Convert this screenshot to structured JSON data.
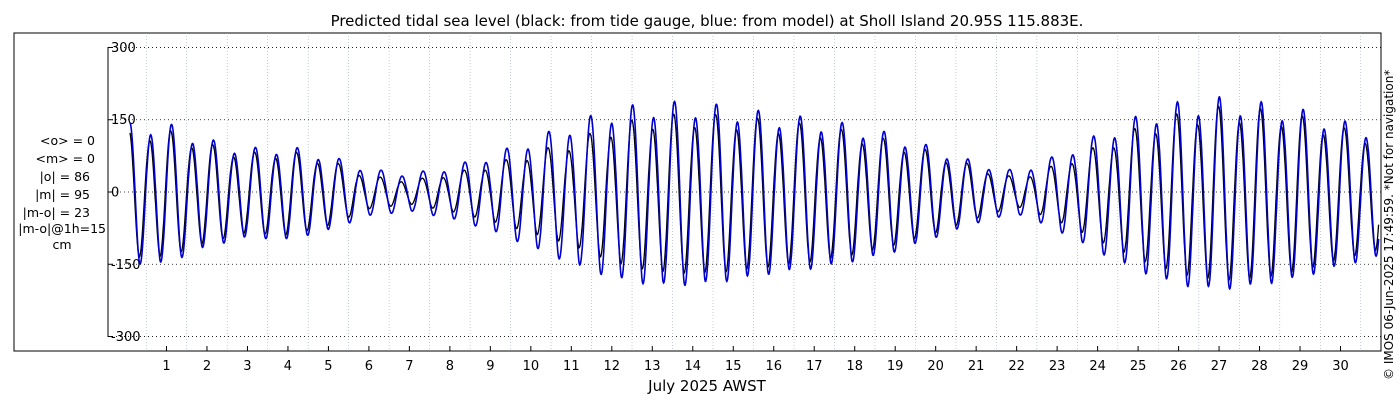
{
  "chart_data": {
    "type": "line",
    "title": "Predicted tidal sea level (black: from tide gauge, blue: from model) at Sholl Island 20.95S 115.883E.",
    "xlabel": "July 2025 AWST",
    "ylabel": "",
    "unit": "cm",
    "ylim": [
      -330,
      330
    ],
    "xlim": [
      0,
      31
    ],
    "yticks": [
      -300,
      -150,
      0,
      150,
      300
    ],
    "xticks": [
      1,
      2,
      3,
      4,
      5,
      6,
      7,
      8,
      9,
      10,
      11,
      12,
      13,
      14,
      15,
      16,
      17,
      18,
      19,
      20,
      21,
      22,
      23,
      24,
      25,
      26,
      27,
      28,
      29,
      30
    ],
    "grid": true,
    "series": [
      {
        "name": "from tide gauge",
        "color": "#000000",
        "description": "semi-diurnal tide, day-of-month x vs sea level (cm); daily-max amplitude samples",
        "x": [
          0,
          1,
          2,
          3,
          4,
          5,
          6,
          7,
          8,
          9,
          10,
          11,
          12,
          13,
          14,
          15,
          16,
          17,
          18,
          19,
          20,
          21,
          22,
          23,
          24,
          25,
          26,
          27,
          28,
          29,
          30,
          31
        ],
        "values": [
          135,
          135,
          105,
          85,
          90,
          70,
          35,
          25,
          40,
          60,
          85,
          110,
          145,
          165,
          170,
          165,
          155,
          145,
          130,
          110,
          85,
          55,
          30,
          60,
          100,
          140,
          170,
          185,
          180,
          165,
          140,
          120
        ]
      },
      {
        "name": "from model",
        "color": "#0000cc",
        "description": "semi-diurnal tide, day-of-month x vs sea level (cm); daily-max amplitude samples",
        "x": [
          0,
          1,
          2,
          3,
          4,
          5,
          6,
          7,
          8,
          9,
          10,
          11,
          12,
          13,
          14,
          15,
          16,
          17,
          18,
          19,
          20,
          21,
          22,
          23,
          24,
          25,
          26,
          27,
          28,
          29,
          30,
          31
        ],
        "values": [
          150,
          150,
          115,
          95,
          100,
          80,
          50,
          40,
          55,
          80,
          115,
          150,
          180,
          195,
          195,
          185,
          170,
          160,
          145,
          125,
          95,
          65,
          45,
          80,
          125,
          165,
          195,
          205,
          195,
          180,
          155,
          135
        ]
      }
    ]
  },
  "stats": {
    "o_mean": "<o> = 0",
    "m_mean": "<m> = 0",
    "o_abs": "|o| = 86",
    "m_abs": "|m| = 95",
    "mo_abs": "|m-o| = 23",
    "mo_1h": "|m-o|@1h=15",
    "unit": "cm"
  },
  "credit": "© IMOS 06-Jun-2025 17:49:59. *Not for navigation*"
}
